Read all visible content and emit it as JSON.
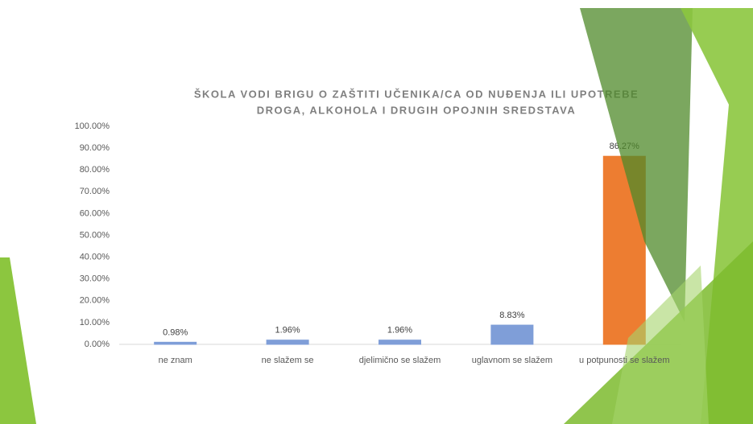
{
  "chart_data": {
    "type": "bar",
    "title": [
      "ŠKOLA VODI BRIGU O ZAŠTITI UČENIKA/CA OD NUĐENJA ILI UPOTREBE",
      "DROGA, ALKOHOLA I DRUGIH OPOJNIH SREDSTAVA"
    ],
    "categories": [
      "ne znam",
      "ne slažem se",
      "djelimično se slažem",
      "uglavnom se slažem",
      "u potpunosti se slažem"
    ],
    "values": [
      0.98,
      1.96,
      1.96,
      8.83,
      86.27
    ],
    "value_labels": [
      "0.98%",
      "1.96%",
      "1.96%",
      "8.83%",
      "86.27%"
    ],
    "colors": [
      "#7f9ed8",
      "#7f9ed8",
      "#7f9ed8",
      "#7f9ed8",
      "#ed7d31"
    ],
    "ylim": [
      0,
      100
    ],
    "yticks": [
      {
        "value": 0,
        "label": "0.00%"
      },
      {
        "value": 10,
        "label": "10.00%"
      },
      {
        "value": 20,
        "label": "20.00%"
      },
      {
        "value": 30,
        "label": "30.00%"
      },
      {
        "value": 40,
        "label": "40.00%"
      },
      {
        "value": 50,
        "label": "50.00%"
      },
      {
        "value": 60,
        "label": "60.00%"
      },
      {
        "value": 70,
        "label": "70.00%"
      },
      {
        "value": 80,
        "label": "80.00%"
      },
      {
        "value": 90,
        "label": "90.00%"
      },
      {
        "value": 100,
        "label": "100.00%"
      }
    ],
    "grid": false
  }
}
